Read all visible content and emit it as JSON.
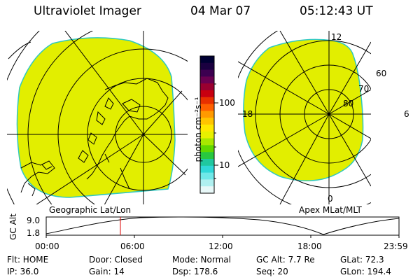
{
  "header": {
    "instrument": "Ultraviolet Imager",
    "date": "04 Mar 07",
    "time": "05:12:43 UT"
  },
  "maps": {
    "left_caption": "Geographic Lat/Lon",
    "right_caption": "Apex MLat/MLT",
    "mlt_labels": {
      "top": "12",
      "left": "18",
      "right": "6",
      "bottom": "0"
    },
    "lat_labels": [
      "60",
      "70",
      "80"
    ]
  },
  "colorbar": {
    "unit_label": "photon cm⁻²s⁻¹",
    "tick_labels": [
      "100",
      "10"
    ],
    "colors": [
      "#000033",
      "#1a0040",
      "#3c0050",
      "#6a0050",
      "#9a0030",
      "#c80010",
      "#e83000",
      "#ff6000",
      "#ff9a00",
      "#ffc400",
      "#ffe800",
      "#e8f000",
      "#a8e800",
      "#60d800",
      "#28c840",
      "#20c8a0",
      "#30d8d8",
      "#70e8e8",
      "#b0f0f0",
      "#e8f8f8"
    ]
  },
  "altitude_plot": {
    "ylabel": "GC Alt",
    "ymax_label": "9.0",
    "ymin_label": "1.8",
    "time_ticks": [
      "00:00",
      "06:00",
      "12:00",
      "18:00",
      "23:59"
    ]
  },
  "info": {
    "flt": "Flt: HOME",
    "ip": "IP: 36.0",
    "door": "Door: Closed",
    "gain": "Gain: 14",
    "mode": "Mode: Normal",
    "dsp": "Dsp:   178.6",
    "gcalt": "GC Alt: 7.7 Re",
    "seq": "Seq: 20",
    "glat": "GLat:  72.3",
    "glon": "GLon: 194.4"
  }
}
